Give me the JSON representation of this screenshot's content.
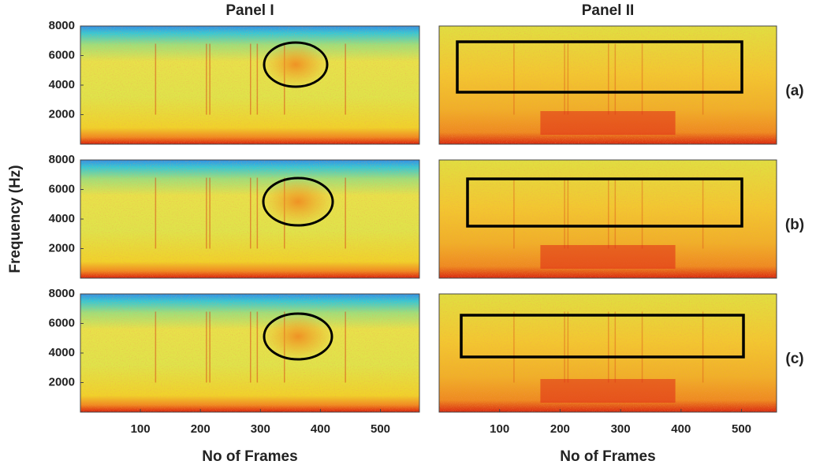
{
  "chart_data": [
    {
      "type": "spectrogram",
      "title": "Panel I",
      "ylim": [
        0,
        8000
      ],
      "yticks": [
        2000,
        4000,
        6000,
        8000
      ]
    },
    {
      "type": "spectrogram",
      "title": "Panel II",
      "label": "(a)"
    },
    {
      "type": "spectrogram",
      "ylabel": "Frequency (Hz)",
      "ylim": [
        0,
        8000
      ],
      "yticks": [
        2000,
        4000,
        6000,
        8000
      ]
    },
    {
      "type": "spectrogram",
      "label": "(b)"
    },
    {
      "type": "spectrogram",
      "xlabel": "No of Frames",
      "xlim": [
        0,
        565
      ],
      "xticks": [
        100,
        200,
        300,
        400,
        500
      ],
      "ylim": [
        0,
        8000
      ],
      "yticks": [
        2000,
        4000,
        6000,
        8000
      ]
    },
    {
      "type": "spectrogram",
      "xlabel": "No of Frames",
      "label": "(c)",
      "xlim": [
        0,
        558
      ],
      "xticks": [
        100,
        200,
        300,
        400,
        500
      ]
    }
  ]
}
